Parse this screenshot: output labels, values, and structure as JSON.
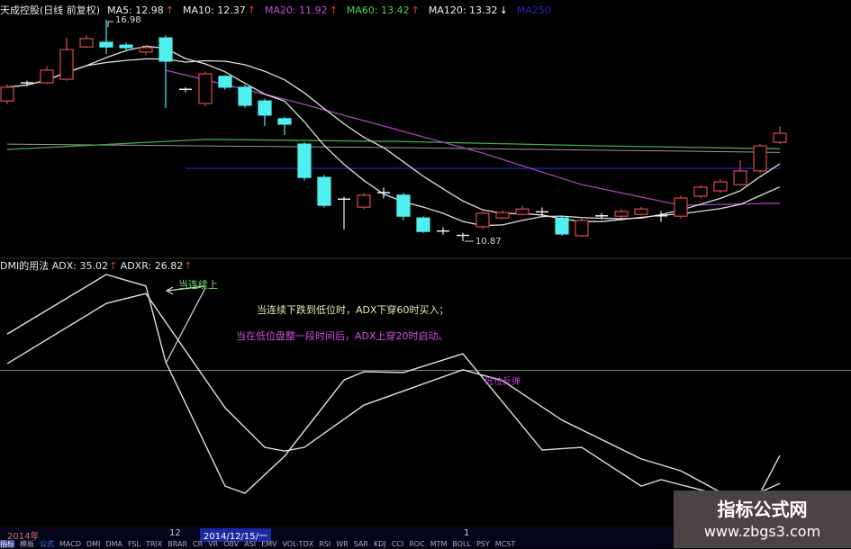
{
  "header": {
    "title": "天成控股(日线 前复权)",
    "ma": [
      {
        "label": "MA5: 12.98",
        "color": "#f0f0f0"
      },
      {
        "label": "MA10: 12.37",
        "color": "#f0f0f0"
      },
      {
        "label": "MA20: 11.92",
        "color": "#c050d0"
      },
      {
        "label": "MA60: 13.42",
        "color": "#50d050"
      },
      {
        "label": "MA120: 13.32",
        "color": "#f0f0f0"
      },
      {
        "label": "MA250",
        "color": "#2828b0"
      }
    ]
  },
  "indicator_header": {
    "name": "DMI的用法",
    "adx": "ADX: 35.02",
    "adxr": "ADXR: 26.82"
  },
  "annotations": {
    "high_label": "16.98",
    "low_label": "10.87",
    "arrow_note": "当连续上",
    "note1": "当连续下跌到低位时，ADX下穿60时买入；",
    "note2": "当在低位盘整一段时间后，ADX上穿20时启动。",
    "rebound": "低位反弹"
  },
  "bottom": {
    "year": "2014年",
    "month": "12",
    "cursor_date": "2014/12/15/一",
    "next": "1",
    "tabs": [
      "指标",
      "模板",
      "公式",
      "MACD",
      "DMI",
      "DMA",
      "FSL",
      "TRIX",
      "BRAR",
      "CR",
      "VR",
      "OBV",
      "ASI",
      "EMV",
      "VOL-TDX",
      "RSI",
      "WR",
      "SAR",
      "KDJ",
      "CCI",
      "ROC",
      "MTM",
      "BOLL",
      "PSY",
      "MCST"
    ]
  },
  "watermark": {
    "title": "指标公式网",
    "url": "www.zbgs3.com"
  },
  "colors": {
    "up": "#e04848",
    "down": "#50f0f0",
    "ma20": "#b040c0",
    "ma60": "#40b040",
    "ma120": "#9a9a9a",
    "ma250": "#2020b0",
    "line": "#e0e0e0"
  },
  "chart_data": [
    {
      "type": "candlestick",
      "ohlc": [
        [
          14.74,
          15.2,
          14.65,
          15.12
        ],
        [
          15.22,
          15.3,
          15.15,
          15.24
        ],
        [
          15.24,
          15.7,
          15.2,
          15.59
        ],
        [
          15.34,
          16.48,
          15.3,
          16.16
        ],
        [
          16.23,
          16.55,
          16.2,
          16.46
        ],
        [
          16.36,
          16.98,
          16.04,
          16.23
        ],
        [
          16.28,
          16.35,
          16.15,
          16.21
        ],
        [
          16.09,
          16.28,
          16.0,
          16.21
        ],
        [
          16.48,
          16.55,
          14.55,
          15.84
        ],
        [
          15.04,
          15.12,
          14.98,
          15.06
        ],
        [
          14.67,
          15.55,
          14.6,
          15.49
        ],
        [
          15.42,
          15.45,
          15.05,
          15.12
        ],
        [
          15.12,
          15.18,
          14.55,
          14.62
        ],
        [
          14.74,
          14.8,
          14.05,
          14.35
        ],
        [
          14.25,
          14.3,
          13.8,
          14.1
        ],
        [
          13.55,
          13.6,
          12.55,
          12.63
        ],
        [
          12.63,
          12.7,
          11.8,
          11.86
        ],
        [
          12.03,
          12.1,
          11.19,
          12.01
        ],
        [
          11.81,
          12.2,
          11.75,
          12.14
        ],
        [
          12.19,
          12.35,
          12.05,
          12.21
        ],
        [
          12.14,
          12.2,
          11.45,
          11.56
        ],
        [
          11.51,
          11.55,
          11.1,
          11.14
        ],
        [
          11.13,
          11.25,
          11.05,
          11.15
        ],
        [
          11.03,
          11.1,
          10.87,
          11.01
        ],
        [
          11.27,
          11.7,
          11.2,
          11.64
        ],
        [
          11.51,
          11.72,
          11.48,
          11.66
        ],
        [
          11.61,
          11.85,
          11.58,
          11.76
        ],
        [
          11.66,
          11.8,
          11.55,
          11.68
        ],
        [
          11.51,
          11.55,
          11.02,
          11.07
        ],
        [
          11.02,
          11.5,
          10.98,
          11.44
        ],
        [
          11.55,
          11.65,
          11.48,
          11.57
        ],
        [
          11.56,
          11.75,
          11.52,
          11.69
        ],
        [
          11.61,
          11.82,
          11.58,
          11.76
        ],
        [
          11.55,
          11.7,
          11.4,
          11.57
        ],
        [
          11.56,
          12.12,
          11.5,
          12.06
        ],
        [
          12.11,
          12.42,
          12.05,
          12.36
        ],
        [
          12.26,
          12.58,
          12.2,
          12.51
        ],
        [
          12.43,
          13.1,
          12.4,
          12.81
        ],
        [
          12.81,
          13.55,
          12.75,
          13.5
        ],
        [
          13.6,
          14.05,
          13.55,
          13.85
        ]
      ],
      "ma20": [
        [
          8,
          15.59
        ],
        [
          14,
          14.79
        ],
        [
          19,
          14.05
        ],
        [
          24,
          13.3
        ],
        [
          29,
          12.43
        ],
        [
          34,
          11.86
        ],
        [
          39,
          11.92
        ]
      ],
      "ma60": [
        [
          0,
          13.4
        ],
        [
          10,
          13.68
        ],
        [
          20,
          13.62
        ],
        [
          30,
          13.5
        ],
        [
          39,
          13.42
        ]
      ],
      "ma120": [
        [
          0,
          13.55
        ],
        [
          20,
          13.45
        ],
        [
          39,
          13.32
        ]
      ],
      "ma250": [
        [
          9,
          12.88
        ],
        [
          39,
          12.88
        ]
      ],
      "high": 16.98,
      "low": 10.87
    },
    {
      "type": "line",
      "series": [
        {
          "name": "ADX",
          "points": [
            [
              0,
              70.7
            ],
            [
              5,
              88.2
            ],
            [
              7,
              84.8
            ],
            [
              8,
              62.5
            ],
            [
              11,
              26.0
            ],
            [
              12,
              23.9
            ],
            [
              14,
              34.8
            ],
            [
              17,
              57.2
            ],
            [
              18,
              59.6
            ],
            [
              20,
              59.4
            ],
            [
              23,
              64.9
            ],
            [
              27,
              36.6
            ],
            [
              29,
              37.4
            ],
            [
              32,
              26.0
            ],
            [
              33,
              27.9
            ],
            [
              36,
              23.4
            ],
            [
              38,
              23.9
            ],
            [
              39,
              35.0
            ]
          ]
        },
        {
          "name": "ADXR",
          "points": [
            [
              0,
              62.0
            ],
            [
              5,
              79.7
            ],
            [
              7,
              82.6
            ],
            [
              11,
              49.0
            ],
            [
              13,
              37.4
            ],
            [
              14,
              36.3
            ],
            [
              15,
              37.4
            ],
            [
              18,
              49.8
            ],
            [
              23,
              60.2
            ],
            [
              25,
              57.0
            ],
            [
              28,
              45.4
            ],
            [
              32,
              34.0
            ],
            [
              34,
              30.5
            ],
            [
              36,
              24.2
            ],
            [
              38,
              24.2
            ],
            [
              39,
              26.8
            ]
          ]
        }
      ],
      "hline": 60
    }
  ]
}
